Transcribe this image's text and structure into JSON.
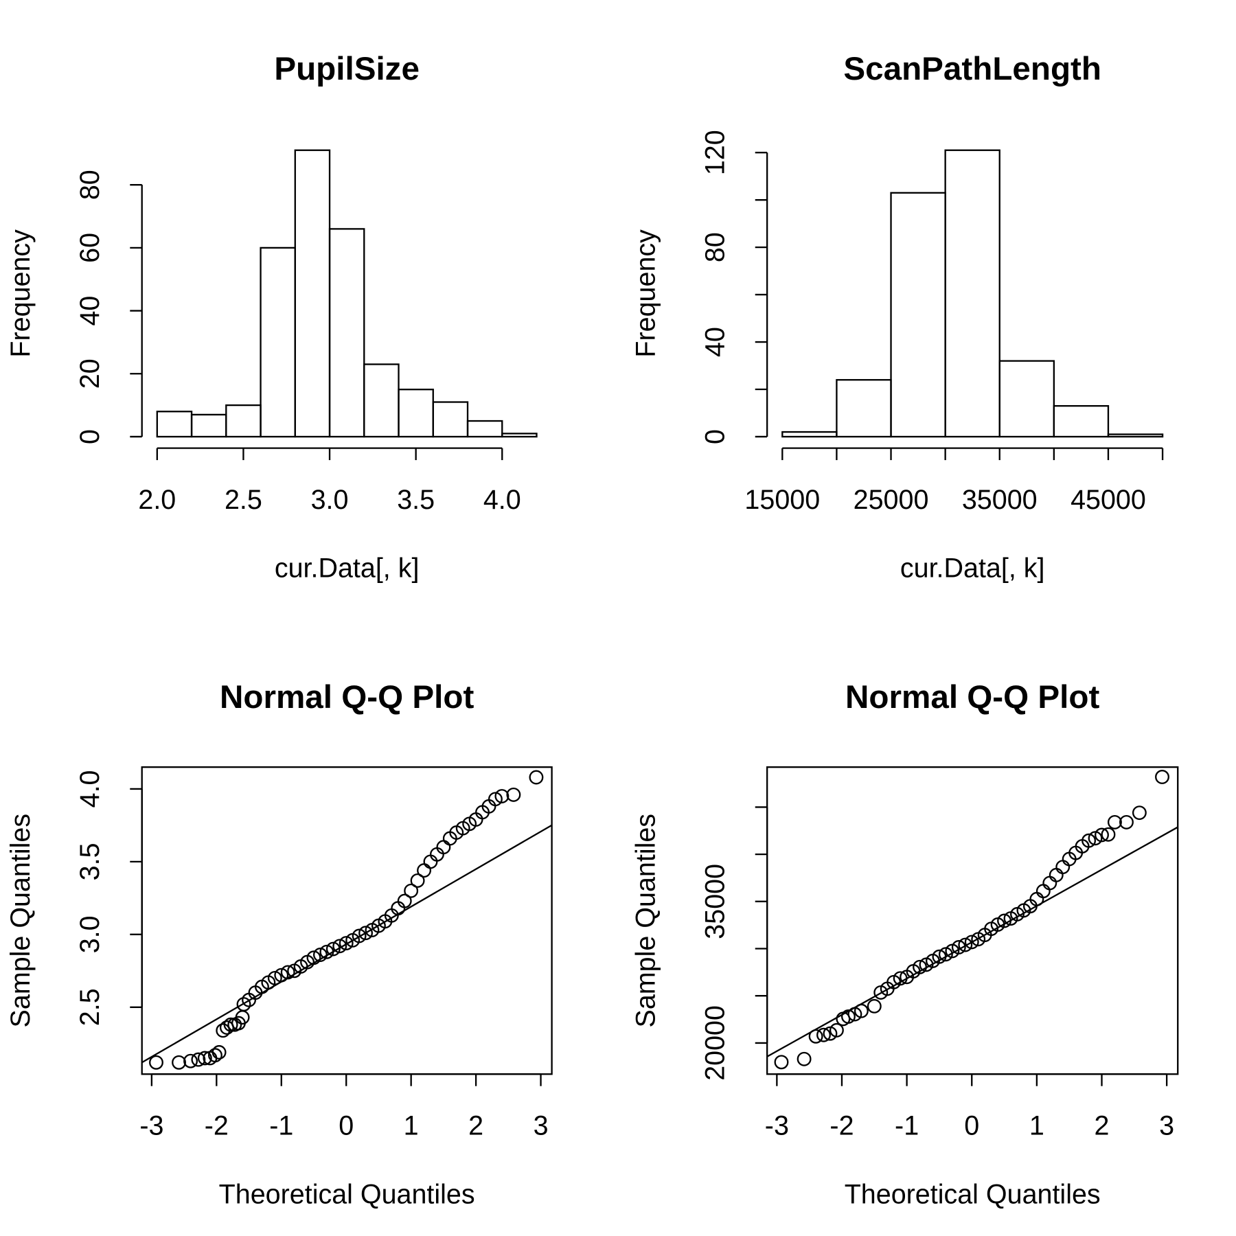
{
  "chart_data": [
    {
      "type": "histogram",
      "title": "PupilSize",
      "xlabel": "cur.Data[, k]",
      "ylabel": "Frequency",
      "bins": [
        2.0,
        2.2,
        2.4,
        2.6,
        2.8,
        3.0,
        3.2,
        3.4,
        3.6,
        3.8,
        4.0,
        4.2
      ],
      "values": [
        8,
        7,
        10,
        60,
        91,
        66,
        23,
        15,
        11,
        5,
        1
      ],
      "xlim": [
        1.912,
        4.288
      ],
      "ylim": [
        -3.64,
        94.64
      ],
      "xticks": [
        {
          "value": 2,
          "label": "2.0"
        },
        {
          "value": 2.5,
          "label": "2.5"
        },
        {
          "value": 3,
          "label": "3.0"
        },
        {
          "value": 3.5,
          "label": "3.5"
        },
        {
          "value": 4,
          "label": "4.0"
        }
      ],
      "yticks": [
        0,
        20,
        40,
        60,
        80
      ]
    },
    {
      "type": "histogram",
      "title": "ScanPathLength",
      "xlabel": "cur.Data[, k]",
      "ylabel": "Frequency",
      "bins": [
        15000,
        20000,
        25000,
        30000,
        35000,
        40000,
        45000,
        50000
      ],
      "values": [
        2,
        24,
        103,
        121,
        32,
        13,
        1
      ],
      "xlim": [
        13600,
        51400
      ],
      "ylim": [
        -4.84,
        125.84
      ],
      "xticks": [
        15000,
        25000,
        35000,
        45000
      ],
      "xminorticks": [
        20000,
        30000,
        40000,
        50000
      ],
      "yticks": [
        0,
        40,
        80,
        120
      ],
      "yminorticks": [
        20,
        60,
        100
      ]
    },
    {
      "type": "qq",
      "title": "Normal Q-Q Plot",
      "xlabel": "Theoretical Quantiles",
      "ylabel": "Sample Quantiles",
      "x": [
        -2.93,
        -2.58,
        -2.4,
        -2.28,
        -2.18,
        -2.1,
        -2.02,
        -1.96,
        -1.9,
        -1.84,
        -1.78,
        -1.72,
        -1.66,
        -1.6,
        -1.58,
        -1.5,
        -1.4,
        -1.3,
        -1.2,
        -1.1,
        -1.0,
        -0.9,
        -0.8,
        -0.7,
        -0.6,
        -0.5,
        -0.4,
        -0.3,
        -0.2,
        -0.1,
        0,
        0.1,
        0.2,
        0.3,
        0.4,
        0.5,
        0.6,
        0.7,
        0.8,
        0.9,
        1.0,
        1.1,
        1.2,
        1.3,
        1.4,
        1.5,
        1.6,
        1.7,
        1.8,
        1.9,
        2.0,
        2.1,
        2.2,
        2.3,
        2.4,
        2.58,
        2.93
      ],
      "values": [
        2.12,
        2.12,
        2.13,
        2.14,
        2.15,
        2.15,
        2.17,
        2.19,
        2.34,
        2.36,
        2.38,
        2.38,
        2.39,
        2.43,
        2.52,
        2.55,
        2.6,
        2.64,
        2.67,
        2.7,
        2.72,
        2.74,
        2.75,
        2.78,
        2.81,
        2.84,
        2.86,
        2.88,
        2.9,
        2.92,
        2.94,
        2.96,
        2.99,
        3.01,
        3.03,
        3.06,
        3.09,
        3.13,
        3.18,
        3.23,
        3.3,
        3.37,
        3.44,
        3.5,
        3.55,
        3.6,
        3.66,
        3.7,
        3.73,
        3.76,
        3.79,
        3.84,
        3.88,
        3.93,
        3.95,
        3.96,
        4.08
      ],
      "line": {
        "intercept": 2.933,
        "slope": 0.258
      },
      "xlim": [
        -3.15,
        3.17
      ],
      "ylim": [
        2.04,
        4.15
      ],
      "xticks": [
        -3,
        -2,
        -1,
        0,
        1,
        2,
        3
      ],
      "yticks": [
        {
          "value": 2.5,
          "label": "2.5"
        },
        {
          "value": 3,
          "label": "3.0"
        },
        {
          "value": 3.5,
          "label": "3.5"
        },
        {
          "value": 4,
          "label": "4.0"
        }
      ]
    },
    {
      "type": "qq",
      "title": "Normal Q-Q Plot",
      "xlabel": "Theoretical Quantiles",
      "ylabel": "Sample Quantiles",
      "x": [
        -2.93,
        -2.58,
        -2.4,
        -2.28,
        -2.18,
        -2.08,
        -1.98,
        -1.9,
        -1.8,
        -1.7,
        -1.5,
        -1.4,
        -1.3,
        -1.2,
        -1.1,
        -1.0,
        -0.9,
        -0.8,
        -0.7,
        -0.6,
        -0.5,
        -0.4,
        -0.3,
        -0.2,
        -0.1,
        0,
        0.1,
        0.2,
        0.3,
        0.4,
        0.5,
        0.6,
        0.7,
        0.8,
        0.9,
        1.0,
        1.1,
        1.2,
        1.3,
        1.4,
        1.5,
        1.6,
        1.7,
        1.8,
        1.9,
        2.0,
        2.1,
        2.2,
        2.38,
        2.58,
        2.93
      ],
      "values": [
        17970,
        18300,
        20700,
        20850,
        21000,
        21350,
        22550,
        22800,
        23050,
        23400,
        23900,
        25350,
        25750,
        26450,
        26850,
        27000,
        27600,
        28050,
        28300,
        28700,
        29150,
        29400,
        29750,
        30150,
        30400,
        30700,
        31000,
        31450,
        32100,
        32550,
        32950,
        33200,
        33650,
        34050,
        34500,
        35250,
        36100,
        36950,
        37800,
        38650,
        39500,
        40150,
        40850,
        41450,
        41700,
        42050,
        42100,
        43400,
        43400,
        44400,
        48200
      ],
      "line": {
        "intercept": 30681,
        "slope": 3848
      },
      "xlim": [
        -3.15,
        3.17
      ],
      "ylim": [
        16700,
        49240
      ],
      "xticks": [
        -3,
        -2,
        -1,
        0,
        1,
        2,
        3
      ],
      "yticks": [
        20000,
        35000
      ],
      "yminorticks": [
        25000,
        30000,
        40000,
        45000
      ]
    }
  ]
}
